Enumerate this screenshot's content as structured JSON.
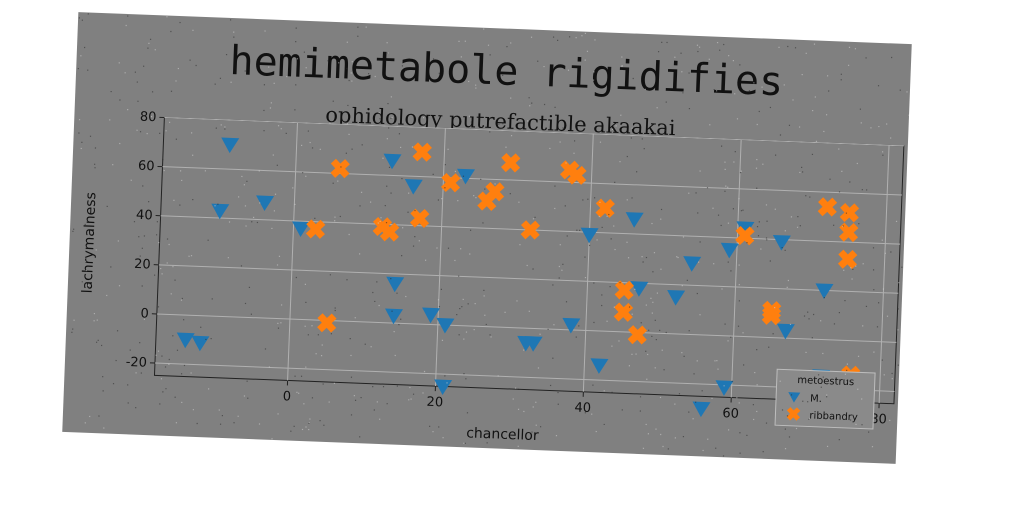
{
  "chart_data": {
    "type": "scatter",
    "title": "hemimetabole rigidifies",
    "subtitle": "ophidology putrefactible akaakai",
    "xlabel": "chancellor",
    "ylabel": "lachrymalness",
    "xlim": [
      -18,
      82
    ],
    "ylim": [
      -25,
      80
    ],
    "xticks": [
      "0",
      "20",
      "40",
      "60",
      "80"
    ],
    "yticks": [
      "-20",
      "0",
      "20",
      "40",
      "60",
      "80"
    ],
    "grid": true,
    "legend": {
      "title": "metoestrus",
      "placement": "lower-right"
    },
    "series": [
      {
        "name": "M.",
        "marker": "triangle-down",
        "color": "#1f77b4",
        "points": [
          [
            -14,
            -10
          ],
          [
            -12,
            -11
          ],
          [
            -10,
            43
          ],
          [
            -9,
            70
          ],
          [
            -4,
            47
          ],
          [
            1,
            37
          ],
          [
            13,
            66
          ],
          [
            14,
            16
          ],
          [
            14,
            3
          ],
          [
            16,
            56
          ],
          [
            19,
            4
          ],
          [
            21,
            0
          ],
          [
            21,
            -25
          ],
          [
            23,
            61
          ],
          [
            32,
            -6
          ],
          [
            33,
            -6
          ],
          [
            38,
            2
          ],
          [
            40,
            39
          ],
          [
            42,
            -14
          ],
          [
            46,
            46
          ],
          [
            47,
            18
          ],
          [
            52,
            15
          ],
          [
            54,
            29
          ],
          [
            56,
            -30
          ],
          [
            59,
            35
          ],
          [
            59,
            -21
          ],
          [
            61,
            44
          ],
          [
            66,
            39
          ],
          [
            67,
            3
          ],
          [
            72,
            20
          ],
          [
            72,
            -15
          ]
        ]
      },
      {
        "name": "ribbandry",
        "marker": "x-filled",
        "color": "#ff7f0e",
        "points": [
          [
            3,
            37
          ],
          [
            5,
            -1
          ],
          [
            6,
            62
          ],
          [
            12,
            39
          ],
          [
            13,
            37
          ],
          [
            17,
            43
          ],
          [
            17,
            70
          ],
          [
            21,
            58
          ],
          [
            26,
            51
          ],
          [
            27,
            55
          ],
          [
            29,
            67
          ],
          [
            32,
            40
          ],
          [
            37,
            65
          ],
          [
            38,
            63
          ],
          [
            42,
            50
          ],
          [
            45,
            8
          ],
          [
            45,
            17
          ],
          [
            47,
            -1
          ],
          [
            61,
            41
          ],
          [
            65,
            9
          ],
          [
            65,
            11
          ],
          [
            72,
            54
          ],
          [
            75,
            52
          ],
          [
            75,
            44
          ],
          [
            75,
            33
          ],
          [
            76,
            -14
          ]
        ]
      }
    ]
  }
}
